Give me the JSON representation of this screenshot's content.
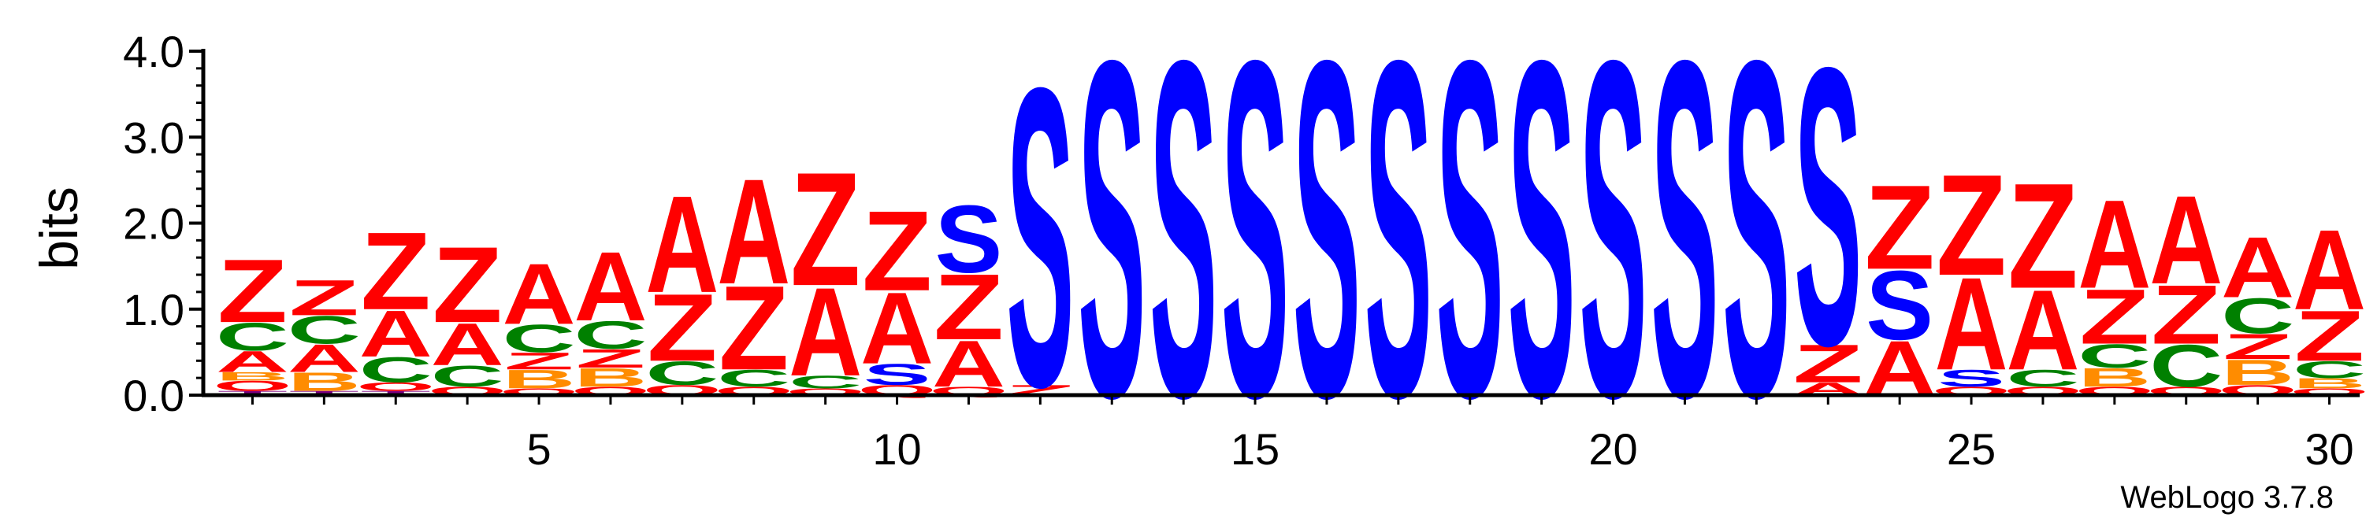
{
  "chart_data": {
    "type": "sequence-logo",
    "ylabel": "bits",
    "ylim": [
      0,
      4.0
    ],
    "yticks": [
      {
        "value": 0.0,
        "label": "0.0"
      },
      {
        "value": 1.0,
        "label": "1.0"
      },
      {
        "value": 2.0,
        "label": "2.0"
      },
      {
        "value": 3.0,
        "label": "3.0"
      },
      {
        "value": 4.0,
        "label": "4.0"
      }
    ],
    "xticks": [
      {
        "value": 5,
        "label": "5"
      },
      {
        "value": 10,
        "label": "10"
      },
      {
        "value": 15,
        "label": "15"
      },
      {
        "value": 20,
        "label": "20"
      },
      {
        "value": 25,
        "label": "25"
      },
      {
        "value": 30,
        "label": "30"
      }
    ],
    "color_scheme": {
      "Z": "#ff0000",
      "A": "#ff0000",
      "S": "#0000ff",
      "C": "#008000",
      "B": "#ff8c00",
      "Q": "#ff0000",
      "T": "#7a0080",
      "O": "#ff0000"
    },
    "positions": [
      {
        "pos": 1,
        "stack": [
          [
            "T",
            0.05
          ],
          [
            "O",
            0.12
          ],
          [
            "B",
            0.1
          ],
          [
            "A",
            0.25
          ],
          [
            "C",
            0.33
          ],
          [
            "Z",
            0.75
          ]
        ]
      },
      {
        "pos": 2,
        "stack": [
          [
            "T",
            0.05
          ],
          [
            "B",
            0.22
          ],
          [
            "A",
            0.33
          ],
          [
            "C",
            0.33
          ],
          [
            "Z",
            0.42
          ]
        ]
      },
      {
        "pos": 3,
        "stack": [
          [
            "T",
            0.05
          ],
          [
            "O",
            0.1
          ],
          [
            "C",
            0.3
          ],
          [
            "A",
            0.55
          ],
          [
            "Z",
            0.92
          ]
        ]
      },
      {
        "pos": 4,
        "stack": [
          [
            "O",
            0.1
          ],
          [
            "C",
            0.25
          ],
          [
            "A",
            0.5
          ],
          [
            "Z",
            0.9
          ]
        ]
      },
      {
        "pos": 5,
        "stack": [
          [
            "O",
            0.08
          ],
          [
            "B",
            0.22
          ],
          [
            "Z",
            0.2
          ],
          [
            "C",
            0.33
          ],
          [
            "A",
            0.72
          ]
        ]
      },
      {
        "pos": 6,
        "stack": [
          [
            "O",
            0.1
          ],
          [
            "B",
            0.22
          ],
          [
            "Z",
            0.22
          ],
          [
            "C",
            0.33
          ],
          [
            "A",
            0.82
          ]
        ]
      },
      {
        "pos": 7,
        "stack": [
          [
            "O",
            0.12
          ],
          [
            "C",
            0.28
          ],
          [
            "Z",
            0.8
          ],
          [
            "A",
            1.15
          ]
        ]
      },
      {
        "pos": 8,
        "stack": [
          [
            "O",
            0.1
          ],
          [
            "C",
            0.2
          ],
          [
            "Z",
            1.0
          ],
          [
            "A",
            1.25
          ]
        ]
      },
      {
        "pos": 9,
        "stack": [
          [
            "Q",
            0.08
          ],
          [
            "C",
            0.15
          ],
          [
            "A",
            1.05
          ],
          [
            "Z",
            1.35
          ]
        ]
      },
      {
        "pos": 10,
        "stack": [
          [
            "Q",
            0.12
          ],
          [
            "S",
            0.25
          ],
          [
            "A",
            0.85
          ],
          [
            "Z",
            0.95
          ]
        ]
      },
      {
        "pos": 11,
        "stack": [
          [
            "Q",
            0.1
          ],
          [
            "A",
            0.55
          ],
          [
            "Z",
            0.78
          ],
          [
            "S",
            0.8
          ]
        ]
      },
      {
        "pos": 12,
        "stack": [
          [
            "Z",
            0.12
          ],
          [
            "S",
            3.55
          ]
        ]
      },
      {
        "pos": 13,
        "stack": [
          [
            "S",
            4.0
          ]
        ]
      },
      {
        "pos": 14,
        "stack": [
          [
            "S",
            4.0
          ]
        ]
      },
      {
        "pos": 15,
        "stack": [
          [
            "S",
            4.0
          ]
        ]
      },
      {
        "pos": 16,
        "stack": [
          [
            "S",
            4.0
          ]
        ]
      },
      {
        "pos": 17,
        "stack": [
          [
            "S",
            4.0
          ]
        ]
      },
      {
        "pos": 18,
        "stack": [
          [
            "S",
            4.0
          ]
        ]
      },
      {
        "pos": 19,
        "stack": [
          [
            "S",
            4.0
          ]
        ]
      },
      {
        "pos": 20,
        "stack": [
          [
            "S",
            4.0
          ]
        ]
      },
      {
        "pos": 21,
        "stack": [
          [
            "S",
            4.0
          ]
        ]
      },
      {
        "pos": 22,
        "stack": [
          [
            "S",
            4.0
          ]
        ]
      },
      {
        "pos": 23,
        "stack": [
          [
            "A",
            0.15
          ],
          [
            "Z",
            0.45
          ],
          [
            "S",
            3.3
          ]
        ]
      },
      {
        "pos": 24,
        "stack": [
          [
            "A",
            0.65
          ],
          [
            "S",
            0.82
          ],
          [
            "Z",
            1.0
          ]
        ]
      },
      {
        "pos": 25,
        "stack": [
          [
            "O",
            0.1
          ],
          [
            "S",
            0.2
          ],
          [
            "A",
            1.1
          ],
          [
            "Z",
            1.2
          ]
        ]
      },
      {
        "pos": 26,
        "stack": [
          [
            "O",
            0.1
          ],
          [
            "C",
            0.2
          ],
          [
            "A",
            0.95
          ],
          [
            "Z",
            1.25
          ]
        ]
      },
      {
        "pos": 27,
        "stack": [
          [
            "O",
            0.1
          ],
          [
            "B",
            0.22
          ],
          [
            "C",
            0.28
          ],
          [
            "Z",
            0.65
          ],
          [
            "A",
            1.05
          ]
        ]
      },
      {
        "pos": 28,
        "stack": [
          [
            "O",
            0.1
          ],
          [
            "C",
            0.5
          ],
          [
            "Z",
            0.7
          ],
          [
            "A",
            1.05
          ]
        ]
      },
      {
        "pos": 29,
        "stack": [
          [
            "O",
            0.12
          ],
          [
            "B",
            0.3
          ],
          [
            "Z",
            0.3
          ],
          [
            "C",
            0.42
          ],
          [
            "A",
            0.72
          ]
        ]
      },
      {
        "pos": 30,
        "stack": [
          [
            "O",
            0.08
          ],
          [
            "B",
            0.12
          ],
          [
            "C",
            0.2
          ],
          [
            "Z",
            0.6
          ],
          [
            "A",
            0.95
          ]
        ]
      }
    ],
    "footer": "WebLogo 3.7.8"
  }
}
